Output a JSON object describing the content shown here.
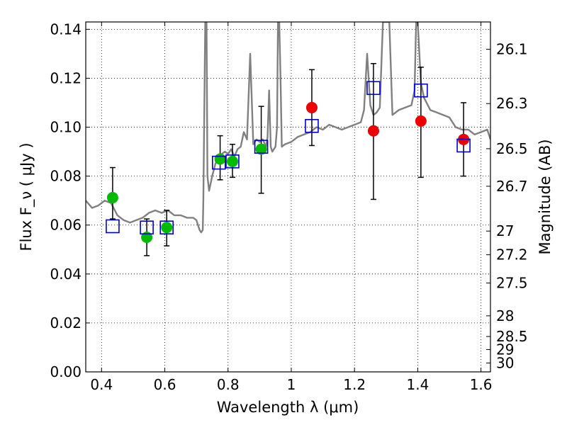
{
  "chart_data": {
    "type": "scatter",
    "xlabel": "Wavelength  λ (μm)",
    "ylabel": "Flux  F_ν  ( μJy )",
    "y2label": "Magnitude (AB)",
    "xlim": [
      0.35,
      1.63
    ],
    "ylim": [
      0.0,
      0.143
    ],
    "grid": true,
    "x_ticks": [
      0.4,
      0.6,
      0.8,
      1.0,
      1.2,
      1.4,
      1.6
    ],
    "x_tick_labels": [
      "0.4",
      "0.6",
      "0.8",
      "1",
      "1.2",
      "1.4",
      "1.6"
    ],
    "y_ticks": [
      0.0,
      0.02,
      0.04,
      0.06,
      0.08,
      0.1,
      0.12,
      0.14
    ],
    "y_tick_labels": [
      "0.00",
      "0.02",
      "0.04",
      "0.06",
      "0.08",
      "0.10",
      "0.12",
      "0.14"
    ],
    "mag_ticks": [
      26.1,
      26.3,
      26.5,
      26.7,
      27,
      27.2,
      27.5,
      28,
      28.5,
      29,
      30
    ],
    "mag_tick_labels": [
      "26.1",
      "26.3",
      "26.5",
      "26.7",
      "27",
      "27.2",
      "27.5",
      "28",
      "28.5",
      "29",
      "30"
    ],
    "series": [
      {
        "name": "model_spectrum",
        "kind": "line",
        "color": "#808080",
        "x": [
          0.35,
          0.37,
          0.39,
          0.41,
          0.43,
          0.45,
          0.47,
          0.49,
          0.51,
          0.53,
          0.55,
          0.57,
          0.59,
          0.61,
          0.63,
          0.65,
          0.67,
          0.69,
          0.7,
          0.71,
          0.715,
          0.72,
          0.722,
          0.728,
          0.732,
          0.735,
          0.74,
          0.75,
          0.76,
          0.77,
          0.78,
          0.79,
          0.8,
          0.81,
          0.82,
          0.83,
          0.84,
          0.85,
          0.86,
          0.87,
          0.88,
          0.89,
          0.9,
          0.91,
          0.92,
          0.925,
          0.93,
          0.935,
          0.94,
          0.95,
          0.955,
          0.958,
          0.962,
          0.966,
          0.97,
          0.98,
          1.0,
          1.02,
          1.04,
          1.06,
          1.08,
          1.1,
          1.12,
          1.14,
          1.16,
          1.18,
          1.2,
          1.22,
          1.23,
          1.24,
          1.25,
          1.26,
          1.27,
          1.28,
          1.29,
          1.3,
          1.31,
          1.32,
          1.34,
          1.36,
          1.38,
          1.39,
          1.395,
          1.4,
          1.41,
          1.42,
          1.44,
          1.46,
          1.48,
          1.5,
          1.52,
          1.54,
          1.56,
          1.58,
          1.6,
          1.62,
          1.63
        ],
        "y": [
          0.07,
          0.067,
          0.068,
          0.07,
          0.069,
          0.064,
          0.062,
          0.061,
          0.062,
          0.063,
          0.065,
          0.066,
          0.065,
          0.066,
          0.064,
          0.064,
          0.063,
          0.063,
          0.062,
          0.058,
          0.057,
          0.058,
          0.07,
          0.143,
          0.143,
          0.08,
          0.074,
          0.08,
          0.085,
          0.088,
          0.089,
          0.09,
          0.089,
          0.091,
          0.088,
          0.091,
          0.092,
          0.098,
          0.095,
          0.13,
          0.093,
          0.095,
          0.094,
          0.095,
          0.092,
          0.096,
          0.115,
          0.092,
          0.09,
          0.092,
          0.1,
          0.143,
          0.143,
          0.12,
          0.092,
          0.093,
          0.094,
          0.096,
          0.097,
          0.098,
          0.1,
          0.099,
          0.101,
          0.1,
          0.099,
          0.1,
          0.101,
          0.102,
          0.107,
          0.13,
          0.109,
          0.105,
          0.106,
          0.108,
          0.143,
          0.143,
          0.143,
          0.105,
          0.107,
          0.108,
          0.109,
          0.115,
          0.143,
          0.143,
          0.118,
          0.112,
          0.107,
          0.106,
          0.105,
          0.104,
          0.1,
          0.099,
          0.099,
          0.097,
          0.098,
          0.099,
          0.095
        ]
      },
      {
        "name": "observed_green",
        "kind": "points",
        "color": "#00bb00",
        "x": [
          0.435,
          0.543,
          0.606,
          0.775,
          0.814,
          0.905
        ],
        "y": [
          0.0712,
          0.055,
          0.059,
          0.087,
          0.086,
          0.091
        ],
        "yerr_low": [
          0.0625,
          0.0475,
          0.0515,
          0.0785,
          0.0795,
          0.073
        ],
        "yerr_high": [
          0.0835,
          0.0625,
          0.066,
          0.0965,
          0.093,
          0.1085
        ]
      },
      {
        "name": "observed_red",
        "kind": "points",
        "color": "#ee0000",
        "x": [
          1.065,
          1.26,
          1.41,
          1.545
        ],
        "y": [
          0.108,
          0.0985,
          0.1025,
          0.095
        ],
        "yerr_low": [
          0.0925,
          0.0705,
          0.0795,
          0.08
        ],
        "yerr_high": [
          0.1235,
          0.126,
          0.1245,
          0.11
        ]
      },
      {
        "name": "model_photometry",
        "kind": "open-squares",
        "color": "#0000cc",
        "x": [
          0.435,
          0.543,
          0.606,
          0.771,
          0.814,
          0.905,
          1.065,
          1.26,
          1.41,
          1.545
        ],
        "y": [
          0.0595,
          0.059,
          0.059,
          0.0855,
          0.086,
          0.092,
          0.1005,
          0.116,
          0.115,
          0.0925
        ]
      }
    ]
  }
}
